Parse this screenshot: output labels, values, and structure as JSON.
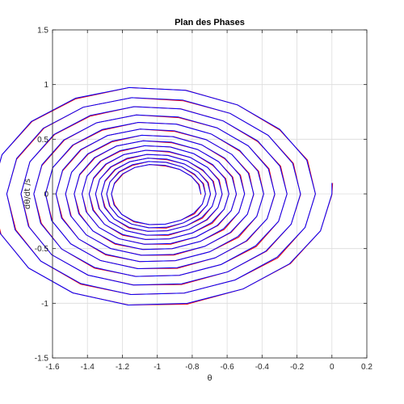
{
  "chart_data": {
    "type": "line",
    "title": "Plan des Phases",
    "xlabel": "θ",
    "ylabel": "dθ/dt /s",
    "xlim": [
      -1.6,
      0.2
    ],
    "ylim": [
      -1.5,
      1.5
    ],
    "xticks": [
      -1.6,
      -1.4,
      -1.2,
      -1,
      -0.8,
      -0.6,
      -0.4,
      -0.2,
      0,
      0.2
    ],
    "xtick_labels": [
      "-1.6",
      "-1.4",
      "-1.2",
      "-1",
      "-0.8",
      "-0.6",
      "-0.4",
      "-0.2",
      "0",
      "0.2"
    ],
    "yticks": [
      -1.5,
      -1,
      -0.5,
      0,
      0.5,
      1,
      1.5
    ],
    "ytick_labels": [
      "-1.5",
      "-1",
      "-0.5",
      "0",
      "0.5",
      "1",
      "1.5"
    ],
    "grid": true,
    "legend": "none",
    "curve": {
      "start": [
        0,
        0.1
      ],
      "center_x": -1.0,
      "initial_amplitude_x": 1.0,
      "initial_amplitude_y": 1.05,
      "turns": 14,
      "final_amplitude": 0.25,
      "samples_per_turn": 18
    },
    "series": [
      {
        "color": "#0000ff"
      },
      {
        "color": "#ff0000"
      }
    ]
  }
}
